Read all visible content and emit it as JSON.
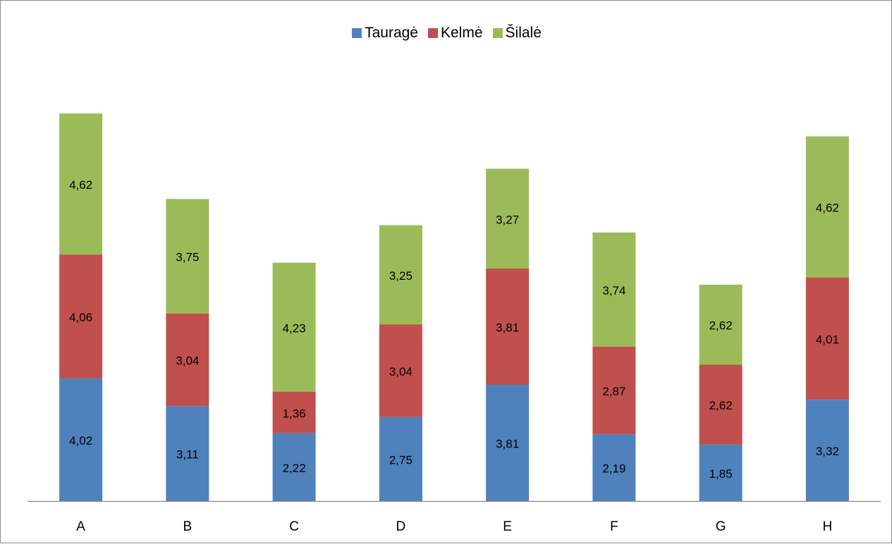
{
  "chart_data": {
    "type": "bar",
    "stacked": true,
    "categories": [
      "A",
      "B",
      "C",
      "D",
      "E",
      "F",
      "G",
      "H"
    ],
    "series": [
      {
        "name": "Tauragė",
        "color": "#4f81bd",
        "values": [
          "4,02",
          "3,11",
          "2,22",
          "2,75",
          "3,81",
          "2,19",
          "1,85",
          "3,32"
        ]
      },
      {
        "name": "Kelmė",
        "color": "#c0504d",
        "values": [
          "4,06",
          "3,04",
          "1,36",
          "3,04",
          "3,81",
          "2,87",
          "2,62",
          "4,01"
        ]
      },
      {
        "name": "Šilalė",
        "color": "#9bbb59",
        "values": [
          "4,62",
          "3,75",
          "4,23",
          "3,25",
          "3,27",
          "3,74",
          "2,62",
          "4,62"
        ]
      }
    ],
    "legend_position": "top",
    "grid": false,
    "ylim": [
      0,
      13.5
    ]
  }
}
